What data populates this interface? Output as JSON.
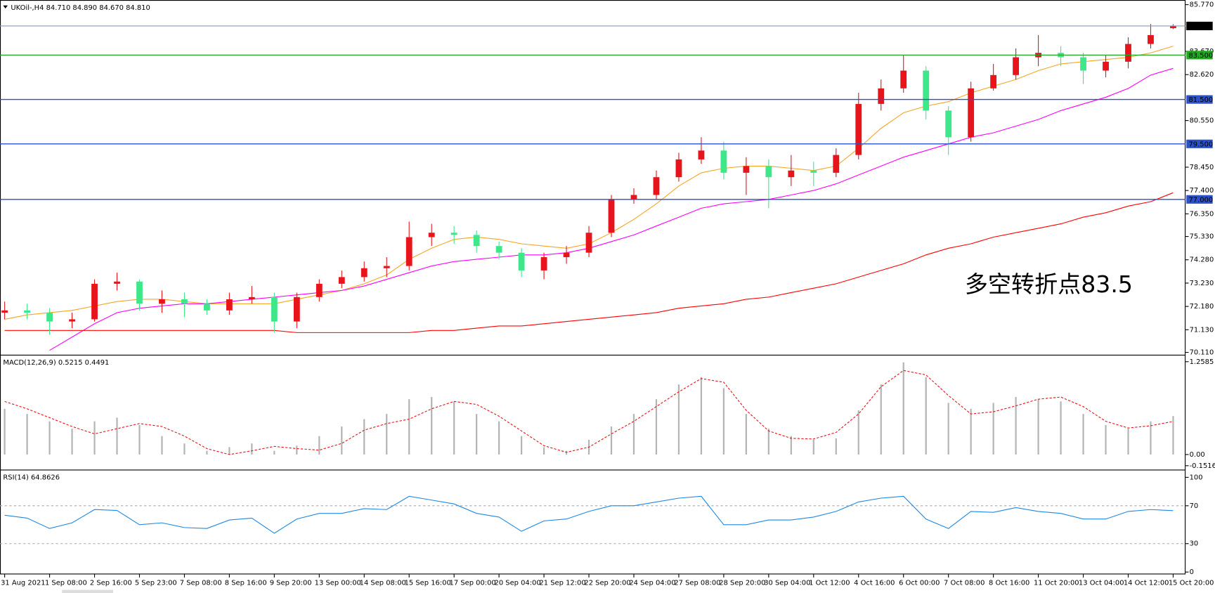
{
  "chart_data": [
    {
      "type": "candlestick",
      "title": "UKOil-,H4  84.710 84.890 84.670 84.810",
      "annotation": "多空转折点83.5",
      "annotation_color": "#e8141c",
      "categories": [
        "31 Aug 2021",
        null,
        "1 Sep 08:00",
        null,
        "2 Sep 16:00",
        null,
        "5 Sep 23:00",
        null,
        "7 Sep 08:00",
        null,
        "8 Sep 16:00",
        null,
        "9 Sep 20:00",
        null,
        "13 Sep 00:00",
        null,
        "14 Sep 08:00",
        null,
        "15 Sep 16:00",
        null,
        "17 Sep 00:00",
        null,
        "20 Sep 04:00",
        null,
        "21 Sep 12:00",
        null,
        "22 Sep 20:00",
        null,
        "24 Sep 04:00",
        null,
        "27 Sep 08:00",
        null,
        "28 Sep 20:00",
        null,
        "30 Sep 04:00",
        null,
        "1 Oct 12:00",
        null,
        "4 Oct 16:00",
        null,
        "6 Oct 00:00",
        null,
        "7 Oct 08:00",
        null,
        "8 Oct 16:00",
        null,
        "11 Oct 20:00",
        null,
        "13 Oct 04:00",
        null,
        "14 Oct 12:00",
        null,
        "15 Oct 20:00"
      ],
      "open": [
        71.9,
        72.0,
        71.9,
        71.5,
        71.6,
        73.2,
        73.3,
        72.3,
        72.5,
        72.3,
        72.0,
        72.5,
        72.6,
        71.5,
        72.6,
        73.2,
        73.5,
        73.9,
        74.0,
        75.3,
        75.5,
        75.4,
        74.9,
        74.6,
        73.8,
        74.4,
        74.6,
        75.5,
        77.0,
        77.2,
        78.0,
        78.8,
        79.2,
        78.2,
        78.5,
        78.0,
        78.3,
        78.2,
        79.0,
        81.3,
        82.0,
        82.8,
        81.0,
        79.8,
        82.0,
        82.6,
        83.4,
        83.6,
        83.4,
        82.8,
        83.2,
        84.0,
        84.71
      ],
      "high": [
        72.4,
        72.3,
        72.1,
        71.9,
        73.4,
        73.7,
        73.4,
        72.9,
        72.8,
        72.5,
        72.8,
        73.1,
        72.8,
        72.8,
        73.4,
        73.8,
        74.2,
        74.4,
        76.0,
        75.9,
        75.8,
        75.6,
        75.1,
        74.8,
        74.6,
        74.9,
        75.8,
        77.2,
        77.5,
        78.3,
        79.1,
        79.8,
        79.6,
        78.9,
        78.8,
        79.0,
        78.7,
        79.3,
        81.8,
        82.4,
        83.5,
        83.0,
        81.2,
        82.3,
        83.1,
        83.8,
        84.4,
        83.9,
        83.6,
        83.5,
        84.3,
        84.9,
        84.89
      ],
      "low": [
        71.6,
        71.6,
        70.9,
        71.2,
        71.5,
        72.9,
        72.0,
        71.9,
        71.7,
        71.8,
        71.8,
        72.3,
        71.0,
        71.2,
        72.4,
        73.0,
        73.3,
        73.5,
        73.8,
        74.9,
        75.0,
        74.6,
        74.3,
        73.5,
        73.4,
        74.1,
        74.4,
        75.3,
        76.8,
        77.0,
        77.8,
        78.6,
        77.9,
        77.2,
        76.6,
        77.6,
        77.6,
        78.0,
        78.8,
        81.0,
        81.8,
        80.6,
        79.0,
        79.6,
        81.9,
        82.4,
        83.0,
        83.0,
        82.2,
        82.5,
        82.9,
        83.8,
        84.67
      ],
      "close": [
        72.0,
        71.9,
        71.5,
        71.6,
        73.2,
        73.3,
        72.3,
        72.5,
        72.3,
        72.0,
        72.5,
        72.6,
        71.5,
        72.6,
        73.2,
        73.5,
        73.9,
        74.0,
        75.3,
        75.5,
        75.4,
        74.9,
        74.6,
        73.8,
        74.4,
        74.6,
        75.5,
        77.0,
        77.2,
        78.0,
        78.8,
        79.2,
        78.2,
        78.5,
        78.0,
        78.3,
        78.2,
        79.0,
        81.3,
        82.0,
        82.8,
        81.0,
        79.8,
        82.0,
        82.6,
        83.4,
        83.6,
        83.4,
        82.8,
        83.2,
        84.0,
        84.4,
        84.81
      ],
      "up_color": "#e8141c",
      "down_color": "#3ee88a",
      "overlays": [
        {
          "color": "#f5a623",
          "values": [
            71.6,
            71.8,
            71.9,
            72.0,
            72.2,
            72.4,
            72.5,
            72.5,
            72.4,
            72.3,
            72.3,
            72.3,
            72.3,
            72.5,
            72.7,
            72.9,
            73.2,
            73.6,
            74.3,
            74.8,
            75.2,
            75.3,
            75.2,
            75.0,
            74.9,
            74.8,
            75.0,
            75.5,
            76.1,
            76.8,
            77.6,
            78.2,
            78.4,
            78.5,
            78.5,
            78.4,
            78.3,
            78.5,
            79.3,
            80.2,
            80.9,
            81.2,
            81.4,
            81.8,
            82.1,
            82.4,
            82.8,
            83.1,
            83.2,
            83.3,
            83.4,
            83.6,
            83.9
          ]
        },
        {
          "color": "#ff00ff",
          "values": [
            null,
            null,
            70.2,
            70.8,
            71.4,
            71.9,
            72.1,
            72.2,
            72.3,
            72.3,
            72.4,
            72.5,
            72.6,
            72.7,
            72.8,
            72.9,
            73.1,
            73.4,
            73.7,
            74.0,
            74.2,
            74.3,
            74.4,
            74.5,
            74.5,
            74.6,
            74.8,
            75.1,
            75.4,
            75.8,
            76.2,
            76.6,
            76.8,
            76.9,
            77.0,
            77.2,
            77.4,
            77.7,
            78.1,
            78.5,
            78.9,
            79.2,
            79.5,
            79.8,
            80.0,
            80.3,
            80.6,
            81.0,
            81.3,
            81.6,
            82.0,
            82.6,
            82.9
          ]
        },
        {
          "color": "#ff0000",
          "values": [
            71.1,
            71.1,
            71.1,
            71.1,
            71.1,
            71.1,
            71.1,
            71.1,
            71.1,
            71.1,
            71.1,
            71.1,
            71.1,
            71.0,
            71.0,
            71.0,
            71.0,
            71.0,
            71.0,
            71.1,
            71.1,
            71.2,
            71.3,
            71.3,
            71.4,
            71.5,
            71.6,
            71.7,
            71.8,
            71.9,
            72.1,
            72.2,
            72.3,
            72.5,
            72.6,
            72.8,
            73.0,
            73.2,
            73.5,
            73.8,
            74.1,
            74.5,
            74.8,
            75.0,
            75.3,
            75.5,
            75.7,
            75.9,
            76.2,
            76.4,
            76.7,
            76.9,
            77.3
          ]
        }
      ],
      "levels": [
        {
          "value": 83.5,
          "label": "83.500",
          "color": "#1faa1f"
        },
        {
          "value": 81.5,
          "label": "81.500",
          "color": "#2b50c8"
        },
        {
          "value": 79.5,
          "label": "79.500",
          "color": "#2b50c8"
        },
        {
          "value": 77.0,
          "label": "77.000",
          "color": "#2b50c8"
        }
      ],
      "current": {
        "value": 84.81,
        "label": "84.810"
      },
      "ylim": [
        70.11,
        85.77
      ],
      "yticks": [
        {
          "value": 85.77,
          "label": "85.770"
        },
        {
          "value": 83.67,
          "label": "83.670"
        },
        {
          "value": 82.62,
          "label": "82.620"
        },
        {
          "value": 80.55,
          "label": "80.550"
        },
        {
          "value": 78.45,
          "label": "78.450"
        },
        {
          "value": 77.4,
          "label": "77.400"
        },
        {
          "value": 76.35,
          "label": "76.350"
        },
        {
          "value": 75.33,
          "label": "75.330"
        },
        {
          "value": 74.28,
          "label": "74.280"
        },
        {
          "value": 73.23,
          "label": "73.230"
        },
        {
          "value": 72.18,
          "label": "72.180"
        },
        {
          "value": 71.13,
          "label": "71.130"
        },
        {
          "value": 70.11,
          "label": "70.110"
        }
      ]
    },
    {
      "type": "macd",
      "title": "MACD(12,26,9) 0.5215 0.4491",
      "histogram_color": "#b4b4b4",
      "signal_color": "#e8141c",
      "values": [
        0.62,
        0.55,
        0.45,
        0.35,
        0.45,
        0.5,
        0.4,
        0.25,
        0.15,
        0.05,
        0.1,
        0.15,
        0.05,
        0.12,
        0.25,
        0.38,
        0.48,
        0.55,
        0.75,
        0.78,
        0.72,
        0.55,
        0.45,
        0.25,
        0.1,
        0.05,
        0.2,
        0.38,
        0.55,
        0.75,
        0.95,
        1.05,
        0.9,
        0.55,
        0.35,
        0.25,
        0.2,
        0.22,
        0.6,
        0.95,
        1.25,
        1.05,
        0.7,
        0.62,
        0.7,
        0.78,
        0.75,
        0.72,
        0.55,
        0.4,
        0.35,
        0.45,
        0.5215
      ],
      "signal": [
        0.72,
        0.62,
        0.5,
        0.38,
        0.28,
        0.35,
        0.42,
        0.38,
        0.25,
        0.08,
        0.0,
        0.05,
        0.11,
        0.08,
        0.06,
        0.15,
        0.33,
        0.42,
        0.48,
        0.62,
        0.72,
        0.68,
        0.52,
        0.32,
        0.12,
        0.03,
        0.1,
        0.28,
        0.45,
        0.65,
        0.85,
        1.03,
        0.98,
        0.6,
        0.32,
        0.22,
        0.21,
        0.3,
        0.55,
        0.92,
        1.14,
        1.08,
        0.8,
        0.55,
        0.58,
        0.66,
        0.75,
        0.78,
        0.65,
        0.45,
        0.36,
        0.39,
        0.4491
      ],
      "ylim": [
        -0.1516,
        1.2585
      ],
      "yticks": [
        1.2585,
        {
          "value": 0,
          "label": "0.00"
        },
        -0.1516
      ]
    },
    {
      "type": "line",
      "title": "RSI(14) 64.8626",
      "color": "#1e88e5",
      "values": [
        60,
        57,
        46,
        52,
        66,
        65,
        50,
        52,
        47,
        46,
        55,
        57,
        41,
        56,
        62,
        62,
        67,
        66,
        80,
        76,
        72,
        62,
        58,
        43,
        54,
        56,
        64,
        70,
        70,
        74,
        78,
        80,
        50,
        50,
        55,
        55,
        58,
        64,
        74,
        78,
        80,
        56,
        46,
        64,
        63,
        68,
        64,
        62,
        56,
        56,
        64,
        66,
        64.8626
      ],
      "ylim": [
        0,
        100
      ],
      "yticks": [
        100,
        70,
        30,
        0
      ]
    }
  ]
}
